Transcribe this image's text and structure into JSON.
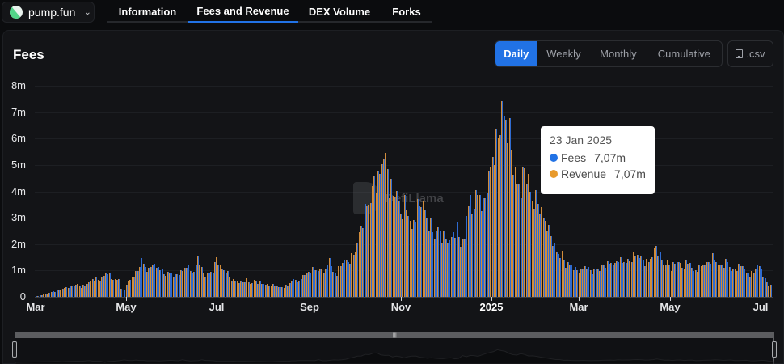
{
  "protocol": {
    "name": "pump.fun",
    "icon": "pill-icon"
  },
  "tabs": [
    {
      "label": "Information",
      "active": false
    },
    {
      "label": "Fees and Revenue",
      "active": true
    },
    {
      "label": "DEX Volume",
      "active": false
    },
    {
      "label": "Forks",
      "active": false
    }
  ],
  "panel": {
    "title": "Fees",
    "periods": [
      "Daily",
      "Weekly",
      "Monthly",
      "Cumulative"
    ],
    "active_period": "Daily",
    "csv_label": ".csv"
  },
  "tooltip": {
    "date": "23 Jan 2025",
    "rows": [
      {
        "label": "Fees",
        "value": "7,07m",
        "color": "#2172e5"
      },
      {
        "label": "Revenue",
        "value": "7,07m",
        "color": "#e89a2c"
      }
    ]
  },
  "watermark": "DefiLlama",
  "colors": {
    "accent": "#2172e5",
    "fees": "#2f6bd0",
    "revenue": "#d08c3c",
    "background": "#131417"
  },
  "chart_data": {
    "type": "bar",
    "title": "Fees",
    "xlabel": "",
    "ylabel": "",
    "ylim": [
      0,
      8000000
    ],
    "yticks": [
      "0",
      "1m",
      "2m",
      "3m",
      "4m",
      "5m",
      "6m",
      "7m",
      "8m"
    ],
    "xticks": [
      "Mar",
      "May",
      "Jul",
      "Sep",
      "Nov",
      "2025",
      "Mar",
      "May",
      "Jul"
    ],
    "grid": true,
    "legend": [
      "Fees",
      "Revenue"
    ],
    "x_start": "2024-03-01",
    "x_end": "2025-07-10",
    "step_days": 4,
    "unit": "millions USD",
    "series": [
      {
        "name": "Fees",
        "values": [
          0.02,
          0.05,
          0.08,
          0.12,
          0.18,
          0.22,
          0.25,
          0.3,
          0.35,
          0.4,
          0.45,
          0.48,
          0.38,
          0.45,
          0.55,
          0.65,
          0.7,
          0.62,
          0.8,
          0.95,
          0.7,
          0.65,
          0.65,
          0.0,
          0.5,
          0.65,
          0.8,
          1.0,
          1.4,
          1.1,
          1.0,
          1.3,
          1.1,
          1.1,
          0.85,
          0.9,
          0.9,
          0.8,
          0.9,
          1.0,
          1.2,
          1.0,
          0.9,
          1.55,
          1.05,
          0.8,
          0.9,
          0.95,
          1.5,
          1.1,
          1.0,
          0.9,
          0.65,
          0.6,
          0.55,
          0.55,
          0.65,
          0.5,
          0.6,
          0.55,
          0.5,
          0.5,
          0.4,
          0.45,
          0.4,
          0.35,
          0.38,
          0.45,
          0.6,
          0.65,
          0.55,
          0.85,
          0.85,
          1.0,
          1.05,
          1.0,
          1.05,
          0.95,
          1.5,
          0.9,
          0.9,
          1.2,
          1.4,
          1.3,
          1.5,
          1.75,
          2.35,
          2.9,
          3.5,
          3.6,
          4.5,
          4.3,
          5.2,
          5.3,
          4.2,
          3.9,
          4.0,
          3.1,
          3.5,
          3.2,
          2.5,
          3.2,
          3.5,
          3.6,
          2.9,
          2.7,
          2.3,
          2.6,
          2.3,
          2.2,
          2.1,
          2.4,
          2.6,
          2.0,
          2.2,
          3.8,
          3.2,
          3.9,
          3.8,
          3.4,
          4.2,
          4.9,
          5.5,
          6.1,
          7.07,
          6.6,
          6.2,
          5.0,
          4.3,
          4.1,
          4.9,
          4.4,
          3.6,
          3.7,
          3.4,
          3.0,
          2.7,
          2.3,
          1.9,
          1.6,
          1.6,
          1.2,
          1.25,
          1.1,
          1.0,
          1.0,
          1.15,
          1.05,
          0.95,
          1.05,
          1.05,
          1.2,
          1.25,
          1.3,
          1.2,
          1.45,
          1.3,
          1.35,
          1.35,
          1.55,
          1.6,
          1.45,
          1.3,
          1.35,
          1.55,
          1.9,
          1.55,
          1.25,
          1.3,
          1.1,
          1.3,
          1.35,
          1.1,
          1.25,
          1.3,
          0.95,
          1.05,
          1.2,
          1.25,
          1.3,
          1.5,
          1.35,
          1.15,
          1.25,
          1.35,
          1.0,
          1.05,
          1.15,
          1.2,
          0.9,
          0.85,
          0.95,
          1.2,
          1.05,
          0.65,
          0.45
        ]
      },
      {
        "name": "Revenue",
        "values": "same as Fees"
      }
    ]
  }
}
